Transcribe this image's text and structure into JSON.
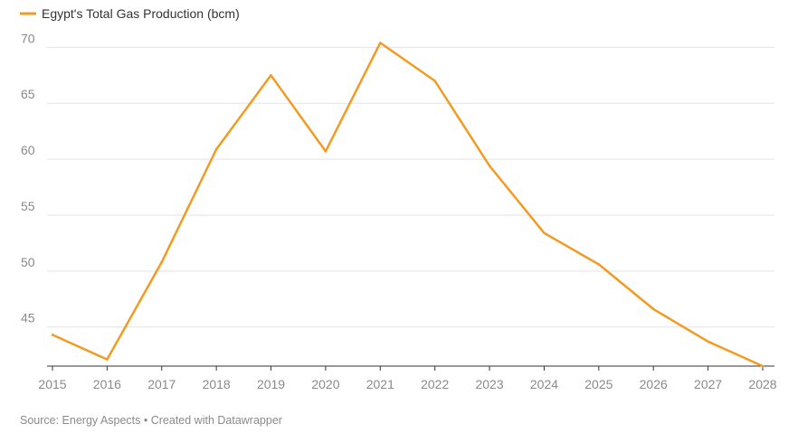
{
  "chart_data": {
    "type": "line",
    "title": "",
    "xlabel": "",
    "ylabel": "",
    "x": [
      2015,
      2016,
      2017,
      2018,
      2019,
      2020,
      2021,
      2022,
      2023,
      2024,
      2025,
      2026,
      2027,
      2028
    ],
    "x_tick_labels": [
      "2015",
      "2016",
      "2017",
      "2018",
      "2019",
      "2020",
      "2021",
      "2022",
      "2023",
      "2024",
      "2025",
      "2026",
      "2027",
      "2028"
    ],
    "y_ticks": [
      45,
      50,
      55,
      60,
      65,
      70
    ],
    "y_tick_labels": [
      "45",
      "50",
      "55",
      "60",
      "65",
      "70"
    ],
    "ylim": [
      41.5,
      71
    ],
    "grid": true,
    "legend": "top-left",
    "series": [
      {
        "name": "Egypt's Total Gas Production (bcm)",
        "color": "#f39a21",
        "values": [
          44.3,
          42.1,
          50.8,
          60.9,
          67.5,
          60.7,
          70.4,
          67.0,
          59.4,
          53.4,
          50.6,
          46.6,
          43.7,
          41.5
        ]
      }
    ]
  },
  "footer": {
    "source": "Source: Energy Aspects • Created with Datawrapper"
  }
}
